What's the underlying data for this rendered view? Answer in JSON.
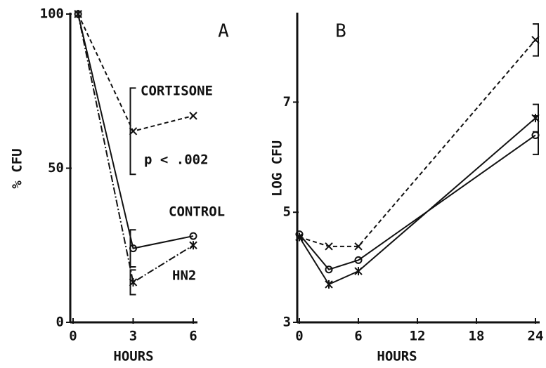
{
  "chart_data": [
    {
      "type": "line",
      "title": "A",
      "xlabel": "HOURS",
      "ylabel": "% CFU",
      "x": [
        0.25,
        3,
        6
      ],
      "xlim": [
        0,
        6
      ],
      "xticks": [
        0,
        3,
        6
      ],
      "ylim": [
        0,
        100
      ],
      "yticks": [
        0,
        50,
        100
      ],
      "annotations": [
        "p < .002"
      ],
      "series": [
        {
          "name": "CORTISONE",
          "color": "#111",
          "style": "dashed",
          "marker": "x",
          "values": [
            100,
            62,
            67
          ],
          "errors": [
            null,
            14,
            null
          ]
        },
        {
          "name": "CONTROL",
          "color": "#111",
          "style": "solid",
          "marker": "o",
          "values": [
            100,
            24,
            28
          ],
          "errors": [
            null,
            6,
            null
          ]
        },
        {
          "name": "HN2",
          "color": "#111",
          "style": "dashdot",
          "marker": "*",
          "values": [
            100,
            13,
            25
          ],
          "errors": [
            null,
            4,
            null
          ]
        }
      ]
    },
    {
      "type": "line",
      "title": "B",
      "xlabel": "HOURS",
      "ylabel": "LOG CFU",
      "x": [
        0,
        3,
        6,
        24
      ],
      "xlim": [
        0,
        24
      ],
      "xticks": [
        0,
        6,
        12,
        18,
        24
      ],
      "ylim": [
        3,
        8.6
      ],
      "yticks": [
        3,
        5,
        7
      ],
      "series": [
        {
          "color": "#111",
          "style": "dashed",
          "marker": "x",
          "values": [
            4.55,
            4.38,
            4.38,
            8.13
          ],
          "errors": [
            null,
            null,
            null,
            0.29
          ]
        },
        {
          "color": "#111",
          "style": "solid",
          "marker": "o",
          "values": [
            4.6,
            3.96,
            4.13,
            6.4
          ],
          "errors": [
            null,
            null,
            null,
            0.35
          ]
        },
        {
          "color": "#111",
          "style": "solid",
          "marker": "*",
          "values": [
            4.55,
            3.69,
            3.93,
            6.71
          ],
          "errors": [
            null,
            null,
            null,
            0.25
          ]
        }
      ]
    }
  ]
}
